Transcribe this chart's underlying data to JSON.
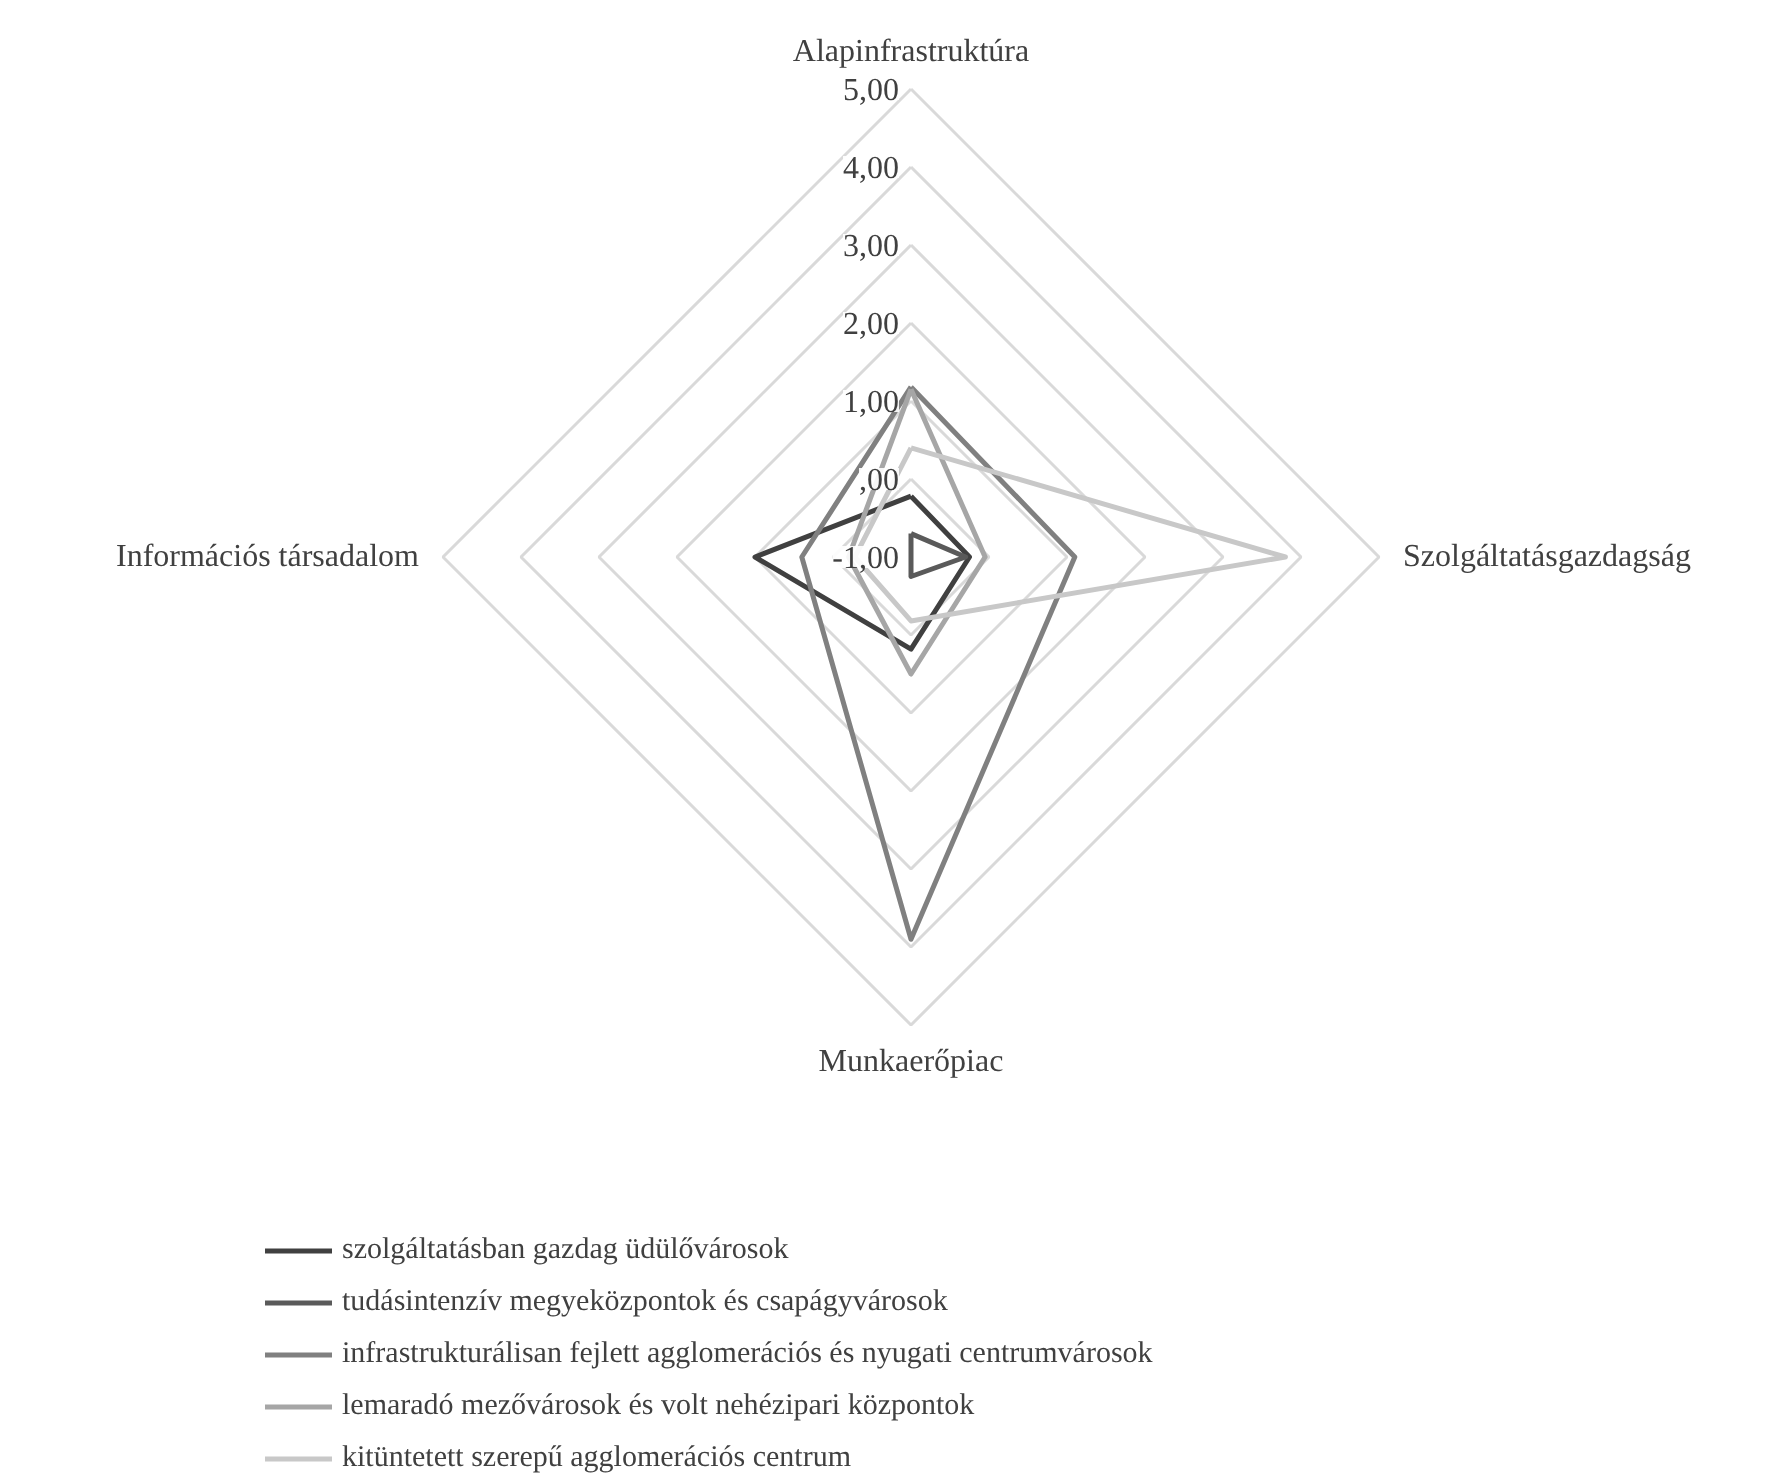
{
  "chart_data": {
    "type": "radar",
    "categories": [
      "Alapinfrastruktúra",
      "Szolgáltatásgazdagság",
      "Munkaerőpiac",
      "Információs társadalom"
    ],
    "ylim": [
      -1,
      5
    ],
    "yticks": [
      {
        "value": -1,
        "label": "-1,00"
      },
      {
        "value": 0,
        "label": ",00"
      },
      {
        "value": 1,
        "label": "1,00"
      },
      {
        "value": 2,
        "label": "2,00"
      },
      {
        "value": 3,
        "label": "3,00"
      },
      {
        "value": 4,
        "label": "4,00"
      },
      {
        "value": 5,
        "label": "5,00"
      }
    ],
    "grid": true,
    "legend": "bottom",
    "marker": "none",
    "line_style": "solid",
    "series": [
      {
        "name": "szolgáltatásban gazdag üdülővárosok",
        "color": "#404040",
        "values": [
          -0.22,
          -0.25,
          0.18,
          1.0
        ]
      },
      {
        "name": "tudásintenzív megyeközpontok és csapágyvárosok",
        "color": "#5a5a5a",
        "values": [
          -0.7,
          -0.3,
          -0.75,
          -1.0
        ]
      },
      {
        "name": "infrastrukturálisan fejlett agglomerációs és nyugati centrumvárosok",
        "color": "#808080",
        "values": [
          1.18,
          1.1,
          3.9,
          0.4
        ]
      },
      {
        "name": "lemaradó mezővárosok és volt nehézipari központok",
        "color": "#a6a6a6",
        "values": [
          1.15,
          -0.05,
          0.5,
          -0.2
        ]
      },
      {
        "name": "kitüntetett szerepű agglomerációs centrum",
        "color": "#c8c8c8",
        "values": [
          0.4,
          3.8,
          -0.18,
          -0.28
        ]
      }
    ]
  }
}
